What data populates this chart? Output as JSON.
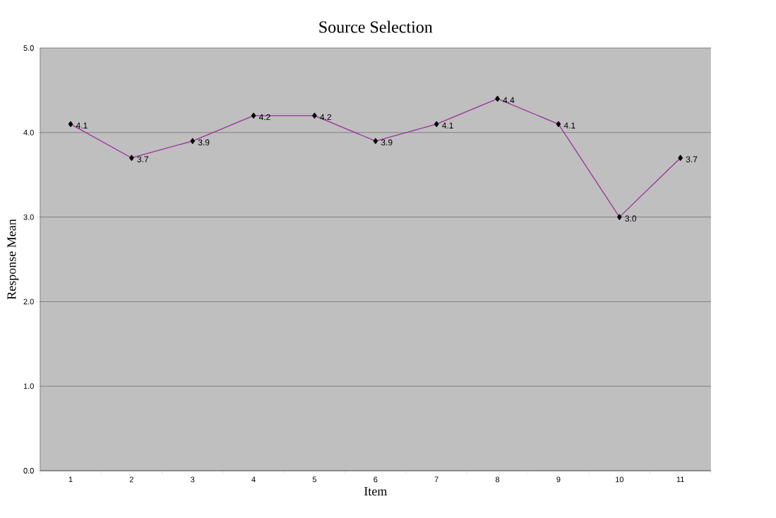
{
  "chart_data": {
    "type": "line",
    "title": "Source Selection",
    "xlabel": "Item",
    "ylabel": "Response Mean",
    "categories": [
      "1",
      "2",
      "3",
      "4",
      "5",
      "6",
      "7",
      "8",
      "9",
      "10",
      "11"
    ],
    "series": [
      {
        "color": "#993399",
        "values": [
          4.1,
          3.7,
          3.9,
          4.2,
          4.2,
          3.9,
          4.1,
          4.4,
          4.1,
          3.0,
          3.7
        ],
        "value_labels": [
          "4.1",
          "3.7",
          "3.9",
          "4.2",
          "4.2",
          "3.9",
          "4.1",
          "4.4",
          "4.1",
          "3.0",
          "3.7"
        ]
      }
    ],
    "ylim": [
      0,
      5
    ],
    "yticks": [
      {
        "value": 0,
        "label": "0.0"
      },
      {
        "value": 1,
        "label": "1.0"
      },
      {
        "value": 2,
        "label": "2.0"
      },
      {
        "value": 3,
        "label": "3.0"
      },
      {
        "value": 4,
        "label": "4.0"
      },
      {
        "value": 5,
        "label": "5.0"
      }
    ],
    "grid": "y",
    "marker": "diamond",
    "line_style": "solid"
  }
}
